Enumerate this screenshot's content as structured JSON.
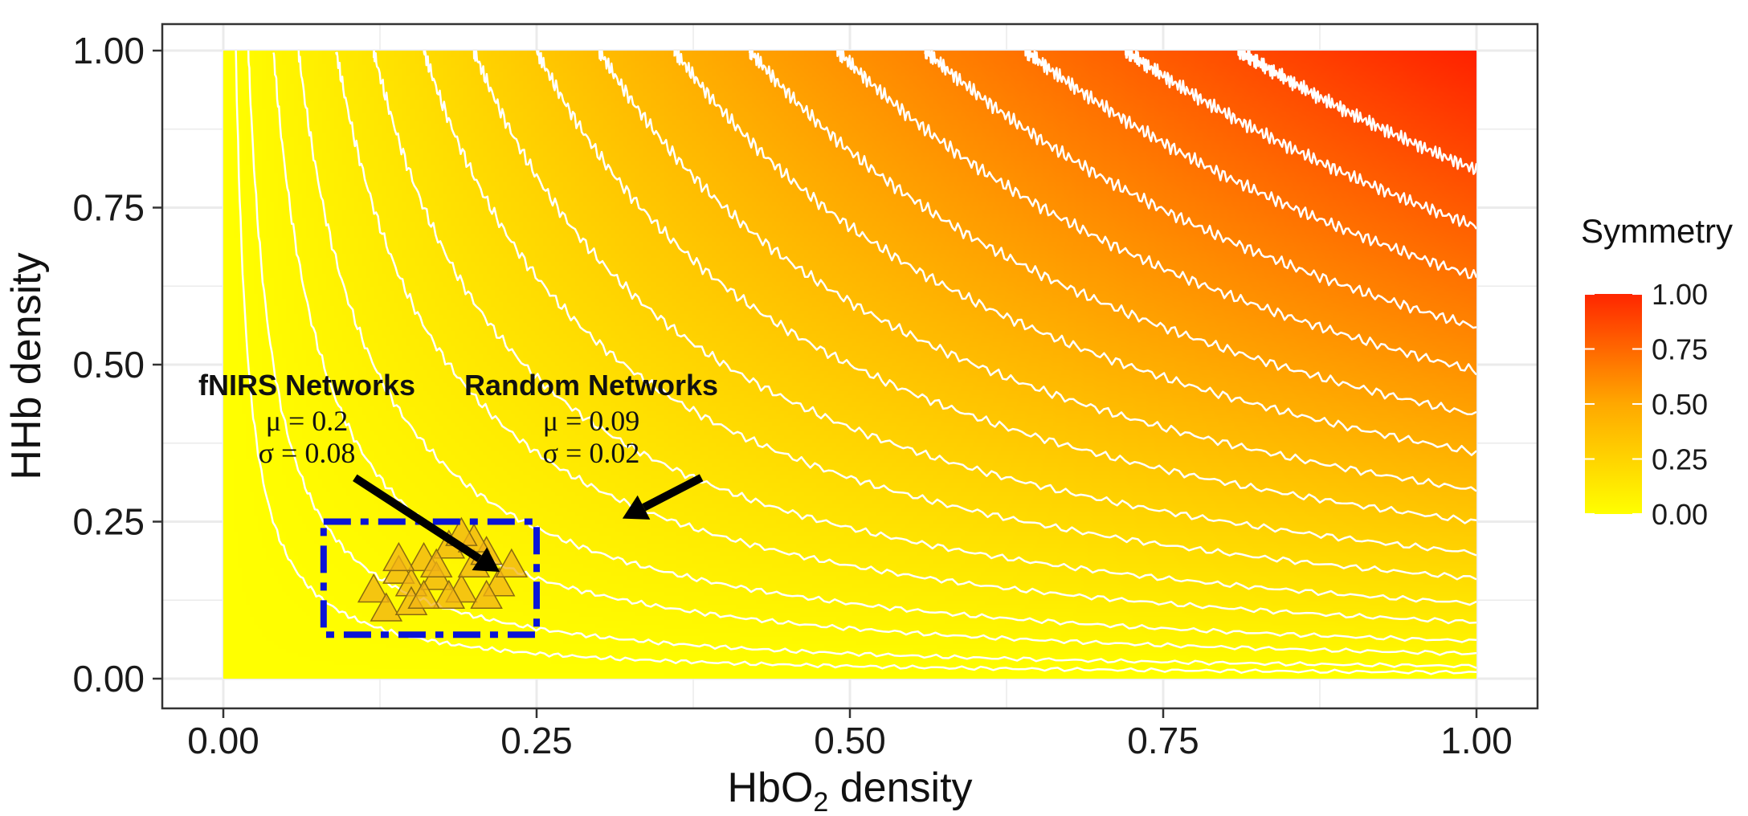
{
  "chart_data": {
    "type": "heatmap",
    "title": "",
    "xlabel_main": "HbO",
    "xlabel_sub": "2",
    "xlabel_rest": " density",
    "ylabel": "HHb density",
    "xlim": [
      0,
      1
    ],
    "ylim": [
      0,
      1
    ],
    "x_ticks": [
      "0.00",
      "0.25",
      "0.50",
      "0.75",
      "1.00"
    ],
    "y_ticks": [
      "0.00",
      "0.25",
      "0.50",
      "0.75",
      "1.00"
    ],
    "x_tick_values": [
      0,
      0.25,
      0.5,
      0.75,
      1
    ],
    "y_tick_values": [
      0,
      0.25,
      0.5,
      0.75,
      1
    ],
    "fill_variable": "Symmetry",
    "fill_range": [
      0,
      1
    ],
    "colors": {
      "low": "#ffff00",
      "high": "#ff2200",
      "contour": "#ffffff",
      "panel_border": "#333333",
      "grid": "#ebebeb",
      "box": "#0a14d6",
      "arrow": "#000000",
      "marker_fill": "#f2b316",
      "marker_stroke": "#8a6a10"
    },
    "contour_levels": [
      0.01,
      0.02,
      0.04,
      0.06,
      0.09,
      0.12,
      0.16,
      0.2,
      0.25,
      0.3,
      0.36,
      0.42,
      0.49,
      0.56,
      0.64,
      0.72,
      0.81
    ],
    "legend": {
      "title": "Symmetry",
      "placement": "right",
      "ticks": [
        "1.00",
        "0.75",
        "0.50",
        "0.25",
        "0.00"
      ],
      "tick_values": [
        1,
        0.75,
        0.5,
        0.25,
        0
      ]
    },
    "fnirs_points": [
      {
        "x": 0.12,
        "y": 0.14
      },
      {
        "x": 0.14,
        "y": 0.17
      },
      {
        "x": 0.15,
        "y": 0.15
      },
      {
        "x": 0.16,
        "y": 0.19
      },
      {
        "x": 0.17,
        "y": 0.16
      },
      {
        "x": 0.18,
        "y": 0.21
      },
      {
        "x": 0.19,
        "y": 0.14
      },
      {
        "x": 0.2,
        "y": 0.18
      },
      {
        "x": 0.21,
        "y": 0.2
      },
      {
        "x": 0.22,
        "y": 0.15
      },
      {
        "x": 0.13,
        "y": 0.11
      },
      {
        "x": 0.15,
        "y": 0.12
      },
      {
        "x": 0.18,
        "y": 0.13
      },
      {
        "x": 0.2,
        "y": 0.22
      },
      {
        "x": 0.17,
        "y": 0.18
      },
      {
        "x": 0.14,
        "y": 0.19
      },
      {
        "x": 0.21,
        "y": 0.13
      },
      {
        "x": 0.16,
        "y": 0.13
      },
      {
        "x": 0.19,
        "y": 0.23
      },
      {
        "x": 0.23,
        "y": 0.18
      }
    ],
    "region_box": {
      "x0": 0.08,
      "x1": 0.25,
      "y0": 0.07,
      "y1": 0.25
    },
    "annotations": {
      "fnirs": {
        "title": "fNIRS Networks",
        "mu": "μ = 0.2",
        "sigma": "σ = 0.08",
        "anchor": {
          "x": 0.1,
          "y": 0.47
        },
        "arrow_from": {
          "x": 0.15,
          "y": 0.32
        },
        "arrow_to": {
          "x": 0.315,
          "y": 0.17
        }
      },
      "random": {
        "title": "Random Networks",
        "mu": "μ = 0.09",
        "sigma": "σ = 0.02",
        "anchor": {
          "x": 0.32,
          "y": 0.47
        },
        "arrow_from": {
          "x": 0.545,
          "y": 0.32
        },
        "arrow_to": {
          "x": 0.455,
          "y": 0.255
        }
      }
    }
  }
}
